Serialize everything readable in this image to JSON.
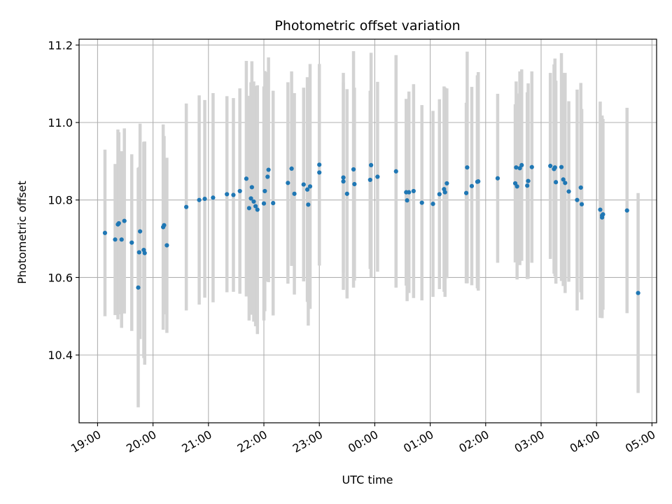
{
  "chart_data": {
    "type": "scatter",
    "title": "Photometric offset variation",
    "xlabel": "UTC time",
    "ylabel": "Photometric offset",
    "x_ticks": [
      "19:00",
      "20:00",
      "21:00",
      "22:00",
      "23:00",
      "00:00",
      "01:00",
      "02:00",
      "03:00",
      "04:00",
      "05:00"
    ],
    "y_ticks": [
      "10.4",
      "10.6",
      "10.8",
      "11.0",
      "11.2"
    ],
    "xlim": [
      "2023-01-01T18:40",
      "2023-01-02T05:05"
    ],
    "ylim": [
      10.225,
      11.215
    ],
    "grid": true,
    "colors": {
      "points": "#1f77b4",
      "errorbars": "#d3d3d3"
    },
    "series": [
      {
        "x": [
          "2023-01-01T19:08",
          "2023-01-01T19:19",
          "2023-01-01T19:22",
          "2023-01-01T19:23",
          "2023-01-01T19:26",
          "2023-01-01T19:29",
          "2023-01-01T19:37",
          "2023-01-01T19:44",
          "2023-01-01T19:45",
          "2023-01-01T19:46",
          "2023-01-01T19:50",
          "2023-01-01T19:51",
          "2023-01-01T20:11",
          "2023-01-01T20:12",
          "2023-01-01T20:15",
          "2023-01-01T20:36",
          "2023-01-01T20:50",
          "2023-01-01T20:56",
          "2023-01-01T21:05",
          "2023-01-01T21:20",
          "2023-01-01T21:27",
          "2023-01-01T21:34",
          "2023-01-01T21:41",
          "2023-01-01T21:44",
          "2023-01-01T21:46",
          "2023-01-01T21:47",
          "2023-01-01T21:49",
          "2023-01-01T21:51",
          "2023-01-01T21:53",
          "2023-01-01T22:00",
          "2023-01-01T22:01",
          "2023-01-01T22:04",
          "2023-01-01T22:05",
          "2023-01-01T22:10",
          "2023-01-01T22:26",
          "2023-01-01T22:30",
          "2023-01-01T22:33",
          "2023-01-01T22:43",
          "2023-01-01T22:47",
          "2023-01-01T22:48",
          "2023-01-01T22:50",
          "2023-01-01T23:00",
          "2023-01-01T23:00",
          "2023-01-01T23:26",
          "2023-01-01T23:26",
          "2023-01-01T23:30",
          "2023-01-01T23:37",
          "2023-01-01T23:38",
          "2023-01-01T23:55",
          "2023-01-01T23:56",
          "2023-01-02T00:03",
          "2023-01-02T00:23",
          "2023-01-02T00:34",
          "2023-01-02T00:35",
          "2023-01-02T00:37",
          "2023-01-02T00:42",
          "2023-01-02T00:51",
          "2023-01-02T01:03",
          "2023-01-02T01:10",
          "2023-01-02T01:15",
          "2023-01-02T01:16",
          "2023-01-02T01:18",
          "2023-01-02T01:39",
          "2023-01-02T01:40",
          "2023-01-02T01:45",
          "2023-01-02T01:51",
          "2023-01-02T01:52",
          "2023-01-02T02:13",
          "2023-01-02T02:32",
          "2023-01-02T02:33",
          "2023-01-02T02:34",
          "2023-01-02T02:37",
          "2023-01-02T02:39",
          "2023-01-02T02:45",
          "2023-01-02T02:46",
          "2023-01-02T02:50",
          "2023-01-02T03:10",
          "2023-01-02T03:14",
          "2023-01-02T03:15",
          "2023-01-02T03:16",
          "2023-01-02T03:22",
          "2023-01-02T03:24",
          "2023-01-02T03:26",
          "2023-01-02T03:30",
          "2023-01-02T03:39",
          "2023-01-02T03:43",
          "2023-01-02T03:44",
          "2023-01-02T04:04",
          "2023-01-02T04:06",
          "2023-01-02T04:06",
          "2023-01-02T04:07",
          "2023-01-02T04:33",
          "2023-01-02T04:45"
        ],
        "y": [
          10.715,
          10.698,
          10.737,
          10.74,
          10.698,
          10.746,
          10.69,
          10.574,
          10.665,
          10.719,
          10.671,
          10.663,
          10.73,
          10.735,
          10.683,
          10.782,
          10.8,
          10.803,
          10.806,
          10.815,
          10.813,
          10.823,
          10.855,
          10.779,
          10.804,
          10.833,
          10.796,
          10.784,
          10.775,
          10.791,
          10.823,
          10.86,
          10.878,
          10.792,
          10.844,
          10.881,
          10.816,
          10.84,
          10.827,
          10.788,
          10.835,
          10.891,
          10.871,
          10.858,
          10.848,
          10.816,
          10.879,
          10.841,
          10.852,
          10.89,
          10.86,
          10.874,
          10.82,
          10.799,
          10.82,
          10.823,
          10.793,
          10.79,
          10.815,
          10.828,
          10.82,
          10.843,
          10.818,
          10.884,
          10.836,
          10.847,
          10.848,
          10.856,
          10.843,
          10.884,
          10.835,
          10.882,
          10.89,
          10.837,
          10.849,
          10.885,
          10.888,
          10.88,
          10.884,
          10.846,
          10.885,
          10.853,
          10.844,
          10.822,
          10.8,
          10.832,
          10.789,
          10.775,
          10.76,
          10.755,
          10.763,
          10.773,
          10.56
        ],
        "yerr": [
          0.215,
          0.195,
          0.245,
          0.235,
          0.228,
          0.239,
          0.228,
          0.309,
          0.22,
          0.278,
          0.279,
          0.288,
          0.265,
          0.23,
          0.226,
          0.267,
          0.27,
          0.255,
          0.27,
          0.253,
          0.25,
          0.265,
          0.304,
          0.29,
          0.3,
          0.325,
          0.31,
          0.31,
          0.321,
          0.302,
          0.31,
          0.27,
          0.29,
          0.29,
          0.26,
          0.251,
          0.26,
          0.25,
          0.29,
          0.312,
          0.316,
          0.26,
          0.24,
          0.245,
          0.28,
          0.27,
          0.305,
          0.249,
          0.23,
          0.29,
          0.245,
          0.3,
          0.241,
          0.26,
          0.26,
          0.276,
          0.252,
          0.24,
          0.245,
          0.265,
          0.27,
          0.245,
          0.233,
          0.299,
          0.256,
          0.275,
          0.282,
          0.218,
          0.204,
          0.222,
          0.24,
          0.25,
          0.247,
          0.241,
          0.252,
          0.247,
          0.24,
          0.27,
          0.281,
          0.262,
          0.294,
          0.275,
          0.284,
          0.233,
          0.285,
          0.27,
          0.246,
          0.279,
          0.258,
          0.26,
          0.246,
          0.265,
          0.258
        ]
      }
    ]
  }
}
